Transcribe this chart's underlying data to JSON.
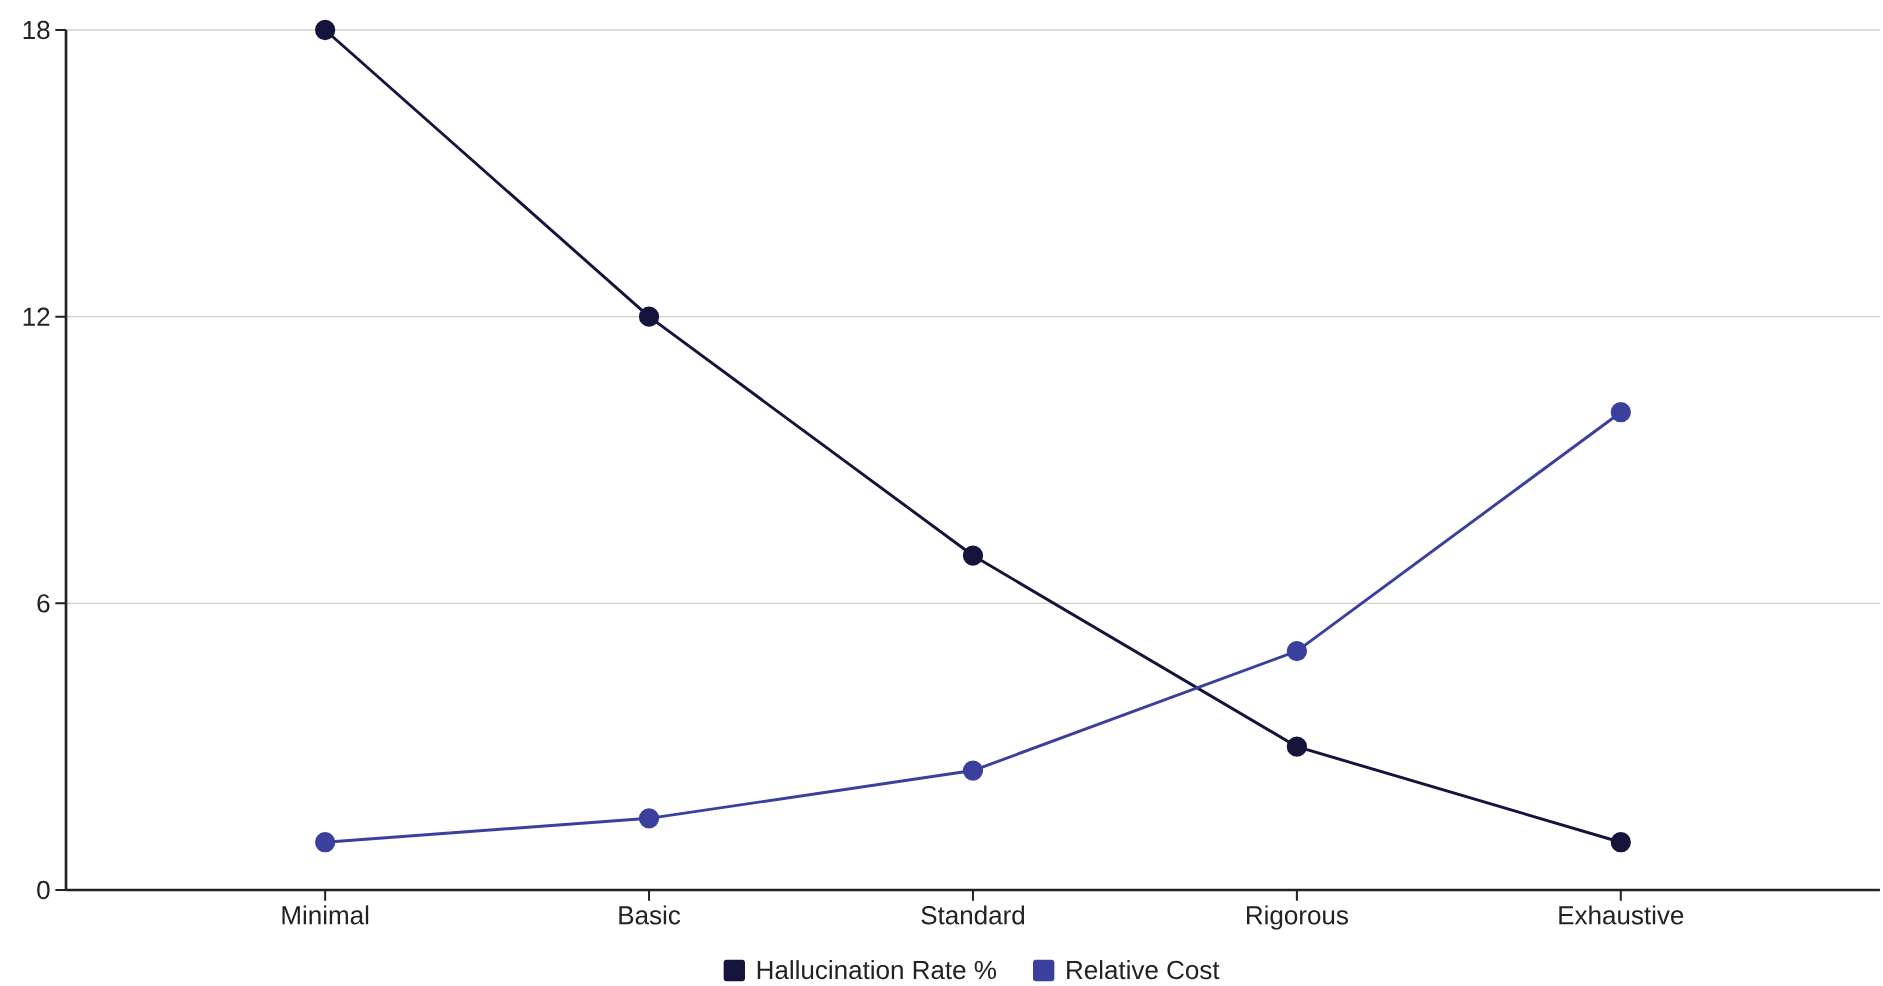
{
  "chart_data": {
    "type": "line",
    "categories": [
      "Minimal",
      "Basic",
      "Standard",
      "Rigorous",
      "Exhaustive"
    ],
    "series": [
      {
        "name": "Hallucination Rate %",
        "color": "#14143c",
        "values": [
          18,
          12,
          7,
          3,
          1
        ]
      },
      {
        "name": "Relative Cost",
        "color": "#3b3f9e",
        "values": [
          1,
          1.5,
          2.5,
          5,
          10
        ]
      }
    ],
    "ylim": [
      0,
      18
    ],
    "yticks": [
      0,
      6,
      12,
      18
    ],
    "grid": "y",
    "legend": "bottom",
    "marker": "circle",
    "line_style": "solid"
  }
}
